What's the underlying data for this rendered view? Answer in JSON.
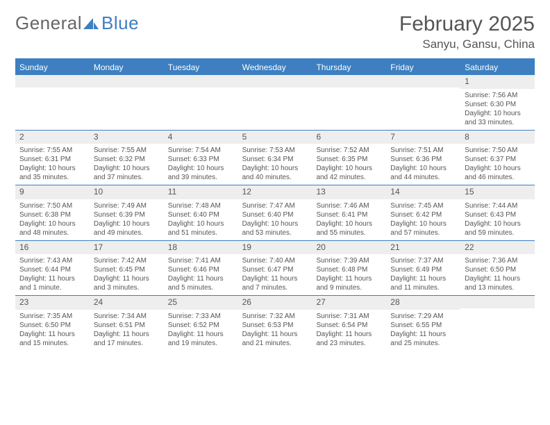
{
  "logo": {
    "text1": "General",
    "text2": "Blue"
  },
  "title": "February 2025",
  "location": "Sanyu, Gansu, China",
  "colors": {
    "accent": "#3d7fc0",
    "text": "#555555",
    "row_alt": "#eeeeee",
    "background": "#ffffff"
  },
  "day_headers": [
    "Sunday",
    "Monday",
    "Tuesday",
    "Wednesday",
    "Thursday",
    "Friday",
    "Saturday"
  ],
  "weeks": [
    [
      {
        "n": "",
        "sunrise": "",
        "sunset": "",
        "daylight": ""
      },
      {
        "n": "",
        "sunrise": "",
        "sunset": "",
        "daylight": ""
      },
      {
        "n": "",
        "sunrise": "",
        "sunset": "",
        "daylight": ""
      },
      {
        "n": "",
        "sunrise": "",
        "sunset": "",
        "daylight": ""
      },
      {
        "n": "",
        "sunrise": "",
        "sunset": "",
        "daylight": ""
      },
      {
        "n": "",
        "sunrise": "",
        "sunset": "",
        "daylight": ""
      },
      {
        "n": "1",
        "sunrise": "Sunrise: 7:56 AM",
        "sunset": "Sunset: 6:30 PM",
        "daylight": "Daylight: 10 hours and 33 minutes."
      }
    ],
    [
      {
        "n": "2",
        "sunrise": "Sunrise: 7:55 AM",
        "sunset": "Sunset: 6:31 PM",
        "daylight": "Daylight: 10 hours and 35 minutes."
      },
      {
        "n": "3",
        "sunrise": "Sunrise: 7:55 AM",
        "sunset": "Sunset: 6:32 PM",
        "daylight": "Daylight: 10 hours and 37 minutes."
      },
      {
        "n": "4",
        "sunrise": "Sunrise: 7:54 AM",
        "sunset": "Sunset: 6:33 PM",
        "daylight": "Daylight: 10 hours and 39 minutes."
      },
      {
        "n": "5",
        "sunrise": "Sunrise: 7:53 AM",
        "sunset": "Sunset: 6:34 PM",
        "daylight": "Daylight: 10 hours and 40 minutes."
      },
      {
        "n": "6",
        "sunrise": "Sunrise: 7:52 AM",
        "sunset": "Sunset: 6:35 PM",
        "daylight": "Daylight: 10 hours and 42 minutes."
      },
      {
        "n": "7",
        "sunrise": "Sunrise: 7:51 AM",
        "sunset": "Sunset: 6:36 PM",
        "daylight": "Daylight: 10 hours and 44 minutes."
      },
      {
        "n": "8",
        "sunrise": "Sunrise: 7:50 AM",
        "sunset": "Sunset: 6:37 PM",
        "daylight": "Daylight: 10 hours and 46 minutes."
      }
    ],
    [
      {
        "n": "9",
        "sunrise": "Sunrise: 7:50 AM",
        "sunset": "Sunset: 6:38 PM",
        "daylight": "Daylight: 10 hours and 48 minutes."
      },
      {
        "n": "10",
        "sunrise": "Sunrise: 7:49 AM",
        "sunset": "Sunset: 6:39 PM",
        "daylight": "Daylight: 10 hours and 49 minutes."
      },
      {
        "n": "11",
        "sunrise": "Sunrise: 7:48 AM",
        "sunset": "Sunset: 6:40 PM",
        "daylight": "Daylight: 10 hours and 51 minutes."
      },
      {
        "n": "12",
        "sunrise": "Sunrise: 7:47 AM",
        "sunset": "Sunset: 6:40 PM",
        "daylight": "Daylight: 10 hours and 53 minutes."
      },
      {
        "n": "13",
        "sunrise": "Sunrise: 7:46 AM",
        "sunset": "Sunset: 6:41 PM",
        "daylight": "Daylight: 10 hours and 55 minutes."
      },
      {
        "n": "14",
        "sunrise": "Sunrise: 7:45 AM",
        "sunset": "Sunset: 6:42 PM",
        "daylight": "Daylight: 10 hours and 57 minutes."
      },
      {
        "n": "15",
        "sunrise": "Sunrise: 7:44 AM",
        "sunset": "Sunset: 6:43 PM",
        "daylight": "Daylight: 10 hours and 59 minutes."
      }
    ],
    [
      {
        "n": "16",
        "sunrise": "Sunrise: 7:43 AM",
        "sunset": "Sunset: 6:44 PM",
        "daylight": "Daylight: 11 hours and 1 minute."
      },
      {
        "n": "17",
        "sunrise": "Sunrise: 7:42 AM",
        "sunset": "Sunset: 6:45 PM",
        "daylight": "Daylight: 11 hours and 3 minutes."
      },
      {
        "n": "18",
        "sunrise": "Sunrise: 7:41 AM",
        "sunset": "Sunset: 6:46 PM",
        "daylight": "Daylight: 11 hours and 5 minutes."
      },
      {
        "n": "19",
        "sunrise": "Sunrise: 7:40 AM",
        "sunset": "Sunset: 6:47 PM",
        "daylight": "Daylight: 11 hours and 7 minutes."
      },
      {
        "n": "20",
        "sunrise": "Sunrise: 7:39 AM",
        "sunset": "Sunset: 6:48 PM",
        "daylight": "Daylight: 11 hours and 9 minutes."
      },
      {
        "n": "21",
        "sunrise": "Sunrise: 7:37 AM",
        "sunset": "Sunset: 6:49 PM",
        "daylight": "Daylight: 11 hours and 11 minutes."
      },
      {
        "n": "22",
        "sunrise": "Sunrise: 7:36 AM",
        "sunset": "Sunset: 6:50 PM",
        "daylight": "Daylight: 11 hours and 13 minutes."
      }
    ],
    [
      {
        "n": "23",
        "sunrise": "Sunrise: 7:35 AM",
        "sunset": "Sunset: 6:50 PM",
        "daylight": "Daylight: 11 hours and 15 minutes."
      },
      {
        "n": "24",
        "sunrise": "Sunrise: 7:34 AM",
        "sunset": "Sunset: 6:51 PM",
        "daylight": "Daylight: 11 hours and 17 minutes."
      },
      {
        "n": "25",
        "sunrise": "Sunrise: 7:33 AM",
        "sunset": "Sunset: 6:52 PM",
        "daylight": "Daylight: 11 hours and 19 minutes."
      },
      {
        "n": "26",
        "sunrise": "Sunrise: 7:32 AM",
        "sunset": "Sunset: 6:53 PM",
        "daylight": "Daylight: 11 hours and 21 minutes."
      },
      {
        "n": "27",
        "sunrise": "Sunrise: 7:31 AM",
        "sunset": "Sunset: 6:54 PM",
        "daylight": "Daylight: 11 hours and 23 minutes."
      },
      {
        "n": "28",
        "sunrise": "Sunrise: 7:29 AM",
        "sunset": "Sunset: 6:55 PM",
        "daylight": "Daylight: 11 hours and 25 minutes."
      },
      {
        "n": "",
        "sunrise": "",
        "sunset": "",
        "daylight": ""
      }
    ]
  ]
}
